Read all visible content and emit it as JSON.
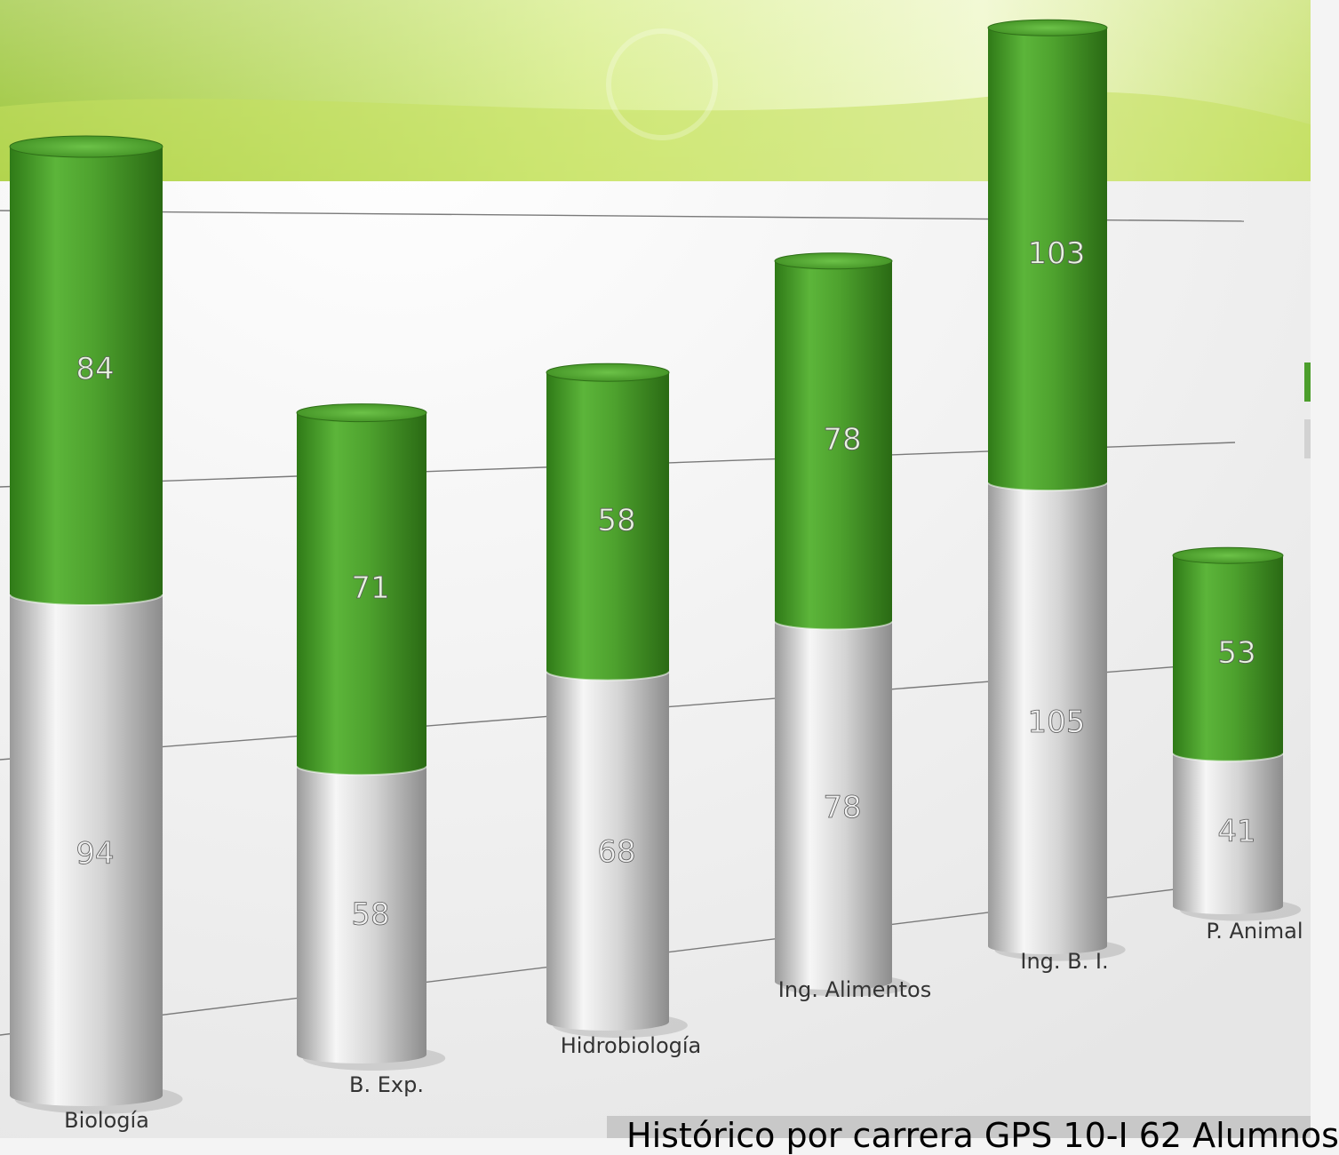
{
  "chart_data": {
    "type": "bar",
    "stacked": true,
    "categories": [
      "Biología",
      "B. Exp.",
      "Hidrobiología",
      "Ing. Alimentos",
      "Ing. B. I.",
      "P. Animal"
    ],
    "series": [
      {
        "values": [
          94,
          58,
          68,
          78,
          105,
          41
        ],
        "color": "#d2d2d2"
      },
      {
        "values": [
          84,
          71,
          58,
          78,
          103,
          53
        ],
        "color": "#4c9e2c"
      }
    ],
    "grid": true
  },
  "caption": {
    "text": "Histórico por carrera GPS 10-I 62 Alumnos"
  },
  "colors": {
    "header_band": "#d6ec86",
    "green": "#4c9e2c",
    "gray": "#d2d2d2"
  }
}
